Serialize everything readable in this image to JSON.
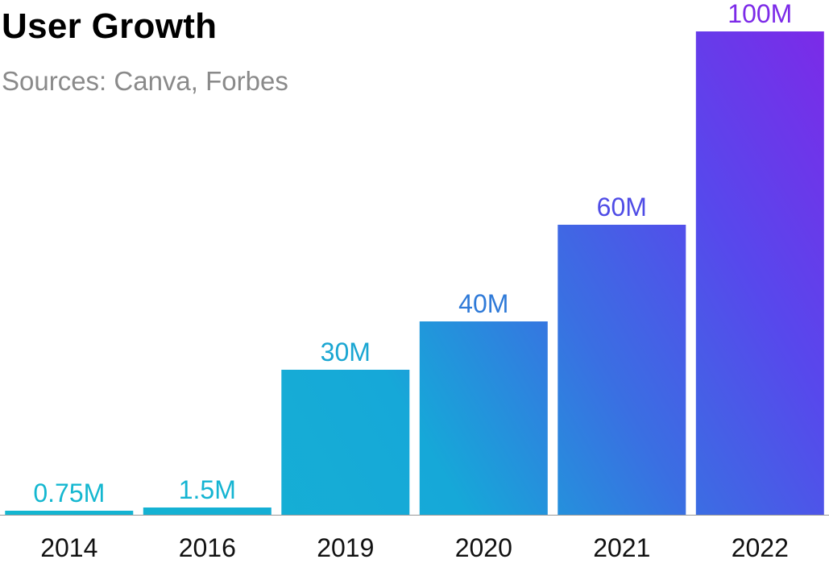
{
  "title": "User Growth",
  "subtitle": "Sources: Canva, Forbes",
  "colors": {
    "text": "#000000",
    "subtitle": "#8a8a8a",
    "axis": "#999999",
    "gradient_start": "#14b7d0",
    "gradient_end": "#7c2ae8"
  },
  "chart_data": {
    "type": "bar",
    "categories": [
      "2014",
      "2016",
      "2019",
      "2020",
      "2021",
      "2022"
    ],
    "values": [
      0.75,
      1.5,
      30,
      40,
      60,
      100
    ],
    "data_labels": [
      "0.75M",
      "1.5M",
      "30M",
      "40M",
      "60M",
      "100M"
    ],
    "bar_colors": [
      "#14b7d0",
      "#14b4d2",
      "#16a8d8",
      "#3a6fe2",
      "#5748ec",
      "#7c2ae8"
    ],
    "label_colors": [
      "#14b7d0",
      "#14b4d2",
      "#1aa6d2",
      "#2f7ad8",
      "#4f4ce6",
      "#7c2ae8"
    ],
    "title": "User Growth",
    "xlabel": "",
    "ylabel": "",
    "ylim": [
      0,
      100
    ],
    "grid": false,
    "legend": "none"
  }
}
